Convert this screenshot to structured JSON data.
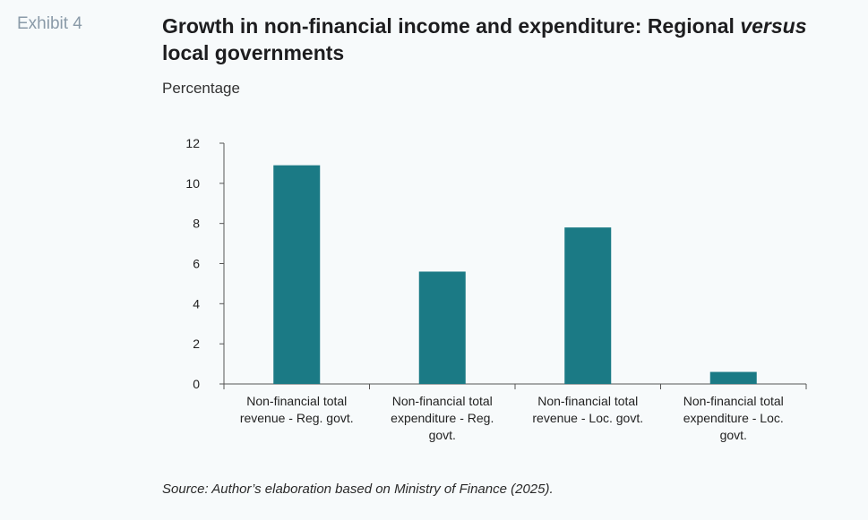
{
  "header": {
    "exhibit_label": "Exhibit 4",
    "title_part1": "Growth in non-financial income and expenditure: Regional ",
    "title_emph": "versus",
    "title_part2": " local governments",
    "units": "Percentage"
  },
  "footer": {
    "source": "Source: Author’s elaboration based on Ministry of Finance (2025)."
  },
  "chart_data": {
    "type": "bar",
    "categories": [
      [
        "Non-financial total",
        "revenue - Reg. govt."
      ],
      [
        "Non-financial total",
        "expenditure - Reg.",
        "govt."
      ],
      [
        "Non-financial total",
        "revenue - Loc. govt."
      ],
      [
        "Non-financial total",
        "expenditure - Loc.",
        "govt."
      ]
    ],
    "values": [
      10.9,
      5.6,
      7.8,
      0.6
    ],
    "ylim": [
      0,
      12
    ],
    "yticks": [
      0,
      2,
      4,
      6,
      8,
      10,
      12
    ],
    "bar_color": "#1b7a85",
    "grid": false,
    "legend": "none"
  }
}
